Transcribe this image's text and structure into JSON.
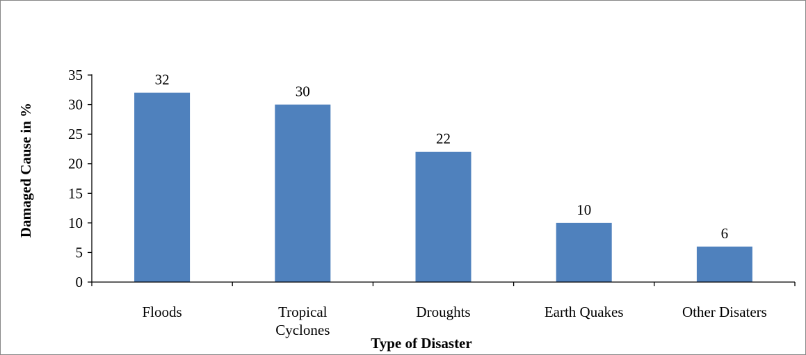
{
  "chart_data": {
    "type": "bar",
    "categories": [
      "Floods",
      "Tropical Cyclones",
      "Droughts",
      "Earth Quakes",
      "Other Disaters"
    ],
    "category_lines": [
      [
        "Floods"
      ],
      [
        "Tropical",
        "Cyclones"
      ],
      [
        "Droughts"
      ],
      [
        "Earth Quakes"
      ],
      [
        "Other Disaters"
      ]
    ],
    "values": [
      32,
      30,
      22,
      10,
      6
    ],
    "data_labels": [
      "32",
      "30",
      "22",
      "10",
      "6"
    ],
    "xlabel": "Type of Disaster",
    "ylabel": "Damaged Cause in %",
    "ylim": [
      0,
      35
    ],
    "yticks": [
      0,
      5,
      10,
      15,
      20,
      25,
      30,
      35
    ],
    "ytick_labels": [
      "0",
      "5",
      "10",
      "15",
      "20",
      "25",
      "30",
      "35"
    ],
    "bar_color": "#4F81BD",
    "axis_color": "#000000",
    "grid": false,
    "legend": "none"
  }
}
